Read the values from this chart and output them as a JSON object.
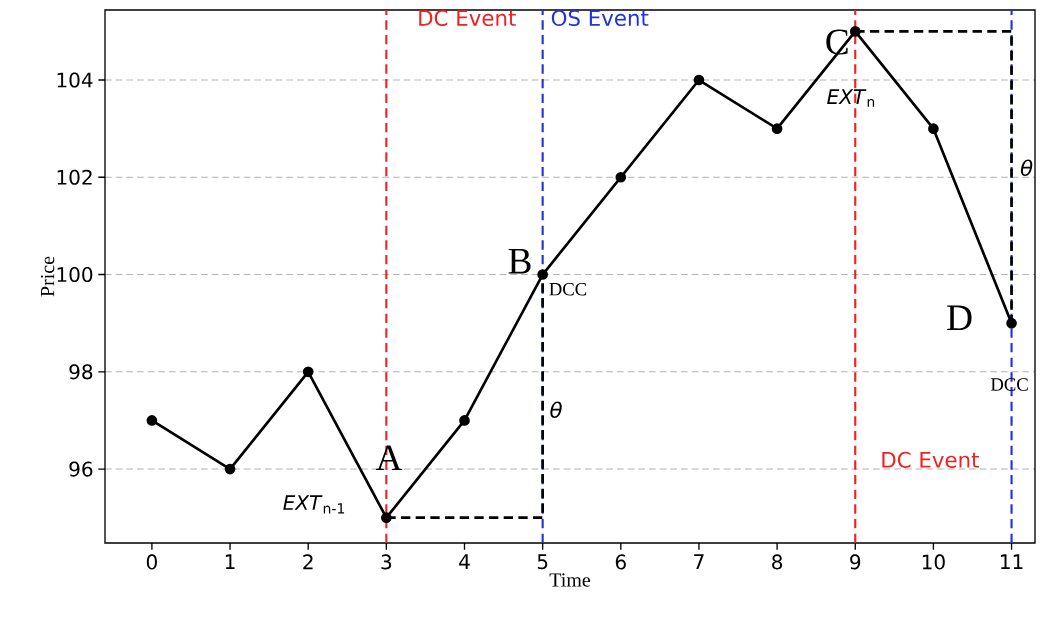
{
  "chart_data": {
    "type": "line",
    "xlabel": "Time",
    "ylabel": "Price",
    "xlim": [
      -0.6,
      11.3
    ],
    "ylim": [
      94.48,
      105.44
    ],
    "xticks": [
      0,
      1,
      2,
      3,
      4,
      5,
      6,
      7,
      8,
      9,
      10,
      11
    ],
    "yticks": [
      96,
      98,
      100,
      102,
      104
    ],
    "grid": "y",
    "marker": "circle",
    "line_style": "solid",
    "series": [
      {
        "color": "#000000",
        "x": [
          0,
          1,
          2,
          3,
          4,
          5,
          6,
          7,
          8,
          9,
          10,
          11
        ],
        "values": [
          97,
          96,
          98,
          95,
          97,
          100,
          102,
          104,
          103,
          105,
          103,
          99
        ]
      },
      {
        "color": "#000000",
        "marker": "none",
        "line_style": "dashed",
        "x": [
          3,
          5,
          5
        ],
        "values": [
          95,
          95,
          100
        ]
      },
      {
        "color": "#000000",
        "marker": "none",
        "line_style": "dashed",
        "x": [
          9,
          11,
          11
        ],
        "values": [
          105,
          105,
          99
        ]
      }
    ],
    "ref_lines": [
      {
        "axis": "x",
        "value": 3,
        "color": "#ee2222",
        "line_style": "dashed"
      },
      {
        "axis": "x",
        "value": 5,
        "color": "#2233dd",
        "line_style": "dashed"
      },
      {
        "axis": "x",
        "value": 9,
        "color": "#ee2222",
        "line_style": "dashed"
      },
      {
        "axis": "x",
        "value": 11,
        "color": "#2233dd",
        "line_style": "dashed"
      }
    ],
    "annotations": [
      "DC Event",
      "OS Event",
      "DC Event",
      "θ",
      "θ",
      {
        "text": "A",
        "x": 3,
        "y": 95
      },
      {
        "text": "B",
        "x": 5,
        "y": 100
      },
      {
        "text": "C",
        "x": 9,
        "y": 105
      },
      {
        "text": "D",
        "x": 11,
        "y": 99
      },
      {
        "text": "*EXT*$_{n-1}$",
        "x": 3,
        "y": 95
      },
      {
        "text": "*EXT*$_{n}$",
        "x": 9,
        "y": 105
      },
      {
        "text": "DCC",
        "x": 5,
        "y": 100
      },
      {
        "text": "DCC",
        "x": 11,
        "y": 99
      }
    ]
  }
}
